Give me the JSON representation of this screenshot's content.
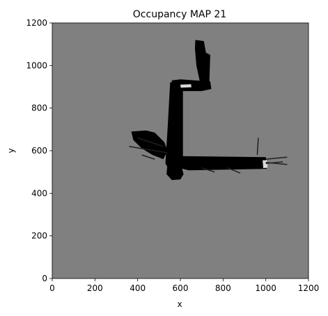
{
  "chart_data": {
    "type": "heatmap",
    "title": "Occupancy MAP 21",
    "xlabel": "x",
    "ylabel": "y",
    "xlim": [
      0,
      1200
    ],
    "ylim": [
      0,
      1200
    ],
    "x_ticks": [
      0,
      200,
      400,
      600,
      800,
      1000,
      1200
    ],
    "y_ticks": [
      0,
      200,
      400,
      600,
      800,
      1000,
      1200
    ],
    "grid": false,
    "colors": {
      "unknown": "#808080",
      "occupied": "#000000",
      "free": "#ffffff"
    },
    "occupied_regions": [
      {
        "name": "vertical-corridor",
        "points": [
          [
            552,
            920
          ],
          [
            590,
            930
          ],
          [
            612,
            918
          ],
          [
            612,
            560
          ],
          [
            585,
            520
          ],
          [
            548,
            510
          ],
          [
            530,
            540
          ],
          [
            540,
            700
          ]
        ]
      },
      {
        "name": "upper-corridor",
        "points": [
          [
            670,
            1120
          ],
          [
            710,
            1115
          ],
          [
            720,
            1060
          ],
          [
            740,
            1050
          ],
          [
            735,
            900
          ],
          [
            700,
            880
          ],
          [
            690,
            930
          ],
          [
            675,
            1000
          ],
          [
            668,
            1080
          ]
        ]
      },
      {
        "name": "upper-link",
        "points": [
          [
            560,
            930
          ],
          [
            600,
            935
          ],
          [
            740,
            925
          ],
          [
            745,
            890
          ],
          [
            700,
            880
          ],
          [
            600,
            880
          ],
          [
            560,
            885
          ]
        ]
      },
      {
        "name": "horizontal-corridor",
        "points": [
          [
            590,
            575
          ],
          [
            1000,
            570
          ],
          [
            1005,
            515
          ],
          [
            640,
            508
          ],
          [
            590,
            520
          ]
        ]
      },
      {
        "name": "left-branch",
        "points": [
          [
            370,
            690
          ],
          [
            440,
            695
          ],
          [
            480,
            685
          ],
          [
            525,
            640
          ],
          [
            540,
            600
          ],
          [
            520,
            560
          ],
          [
            470,
            580
          ],
          [
            420,
            610
          ],
          [
            380,
            650
          ]
        ]
      },
      {
        "name": "lower-blob",
        "points": [
          [
            540,
            540
          ],
          [
            600,
            545
          ],
          [
            615,
            490
          ],
          [
            600,
            465
          ],
          [
            560,
            462
          ],
          [
            535,
            490
          ]
        ]
      }
    ],
    "free_regions": [
      {
        "name": "right-edge-highlights",
        "points": [
          [
            985,
            555
          ],
          [
            1005,
            555
          ],
          [
            1008,
            520
          ],
          [
            988,
            518
          ]
        ]
      },
      {
        "name": "corner-highlights",
        "points": [
          [
            600,
            910
          ],
          [
            650,
            912
          ],
          [
            652,
            898
          ],
          [
            602,
            896
          ]
        ]
      }
    ],
    "rays": [
      [
        [
          1000,
          560
        ],
        [
          1100,
          570
        ]
      ],
      [
        [
          1000,
          545
        ],
        [
          1100,
          535
        ]
      ],
      [
        [
          1000,
          540
        ],
        [
          1080,
          548
        ]
      ],
      [
        [
          960,
          580
        ],
        [
          965,
          660
        ]
      ],
      [
        [
          700,
          520
        ],
        [
          760,
          500
        ]
      ],
      [
        [
          820,
          520
        ],
        [
          880,
          495
        ]
      ],
      [
        [
          540,
          590
        ],
        [
          360,
          620
        ]
      ],
      [
        [
          520,
          620
        ],
        [
          400,
          660
        ]
      ],
      [
        [
          480,
          560
        ],
        [
          420,
          580
        ]
      ]
    ]
  }
}
